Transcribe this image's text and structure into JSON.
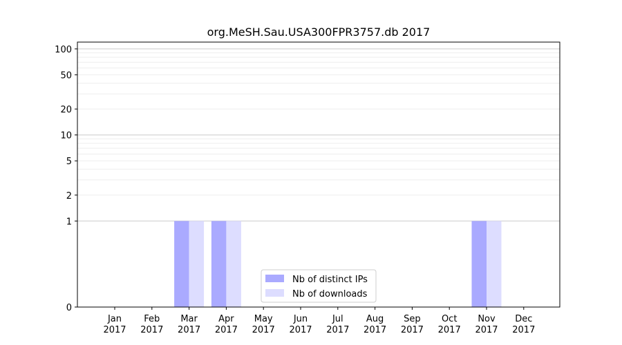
{
  "chart_data": {
    "type": "bar",
    "title": "org.MeSH.Sau.USA300FPR3757.db 2017",
    "xlabel": "",
    "ylabel": "",
    "yscale": "symlog",
    "ylim": [
      0,
      120
    ],
    "yticks": [
      0,
      1,
      2,
      5,
      10,
      20,
      50,
      100
    ],
    "grid": true,
    "legend_position": "bottom-center",
    "categories": [
      [
        "Jan",
        "2017"
      ],
      [
        "Feb",
        "2017"
      ],
      [
        "Mar",
        "2017"
      ],
      [
        "Apr",
        "2017"
      ],
      [
        "May",
        "2017"
      ],
      [
        "Jun",
        "2017"
      ],
      [
        "Jul",
        "2017"
      ],
      [
        "Aug",
        "2017"
      ],
      [
        "Sep",
        "2017"
      ],
      [
        "Oct",
        "2017"
      ],
      [
        "Nov",
        "2017"
      ],
      [
        "Dec",
        "2017"
      ]
    ],
    "series": [
      {
        "name": "Nb of distinct IPs",
        "color": "#aaaaff",
        "values": [
          0,
          0,
          1,
          1,
          0,
          0,
          0,
          0,
          0,
          0,
          1,
          0
        ]
      },
      {
        "name": "Nb of downloads",
        "color": "#ddddff",
        "values": [
          0,
          0,
          1,
          1,
          0,
          0,
          0,
          0,
          0,
          0,
          1,
          0
        ]
      }
    ]
  }
}
